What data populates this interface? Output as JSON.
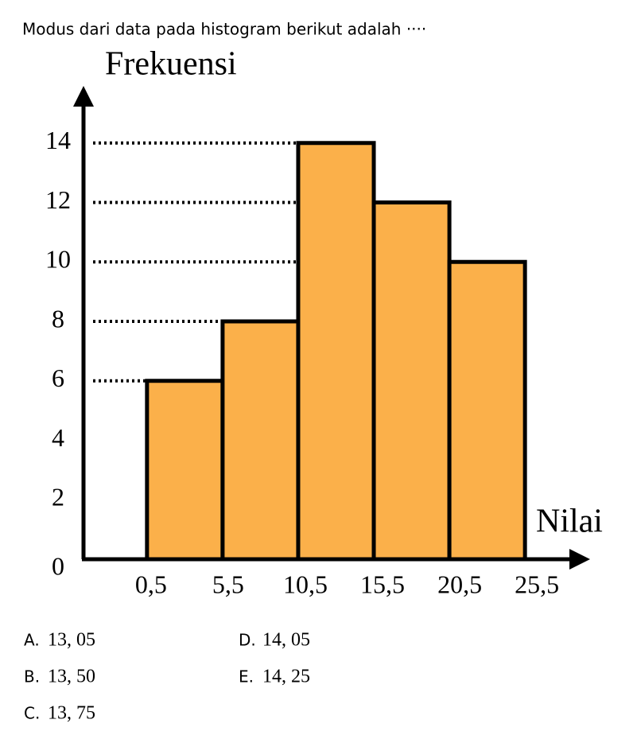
{
  "question": "Modus dari data pada histogram berikut adalah ····",
  "chart_data": {
    "type": "histogram",
    "y_label": "Frekuensi",
    "x_label": "Nilai",
    "bins": [
      0.5,
      5.5,
      10.5,
      15.5,
      20.5,
      25.5
    ],
    "values": [
      6,
      8,
      14,
      12,
      10
    ],
    "color": "#fbb04a",
    "xlim": [
      -3.7,
      29.7
    ],
    "ylim": [
      0,
      16
    ],
    "xticks": [
      {
        "value": 0.5,
        "label": "0,5"
      },
      {
        "value": 5.5,
        "label": "5,5"
      },
      {
        "value": 10.5,
        "label": "10,5"
      },
      {
        "value": 15.5,
        "label": "15,5"
      },
      {
        "value": 20.5,
        "label": "20,5"
      },
      {
        "value": 25.5,
        "label": "25,5"
      }
    ],
    "yticks": [
      0,
      2,
      4,
      6,
      8,
      10,
      12,
      14
    ],
    "guide_lines": true
  },
  "options": [
    {
      "letter": "A.",
      "text": "13, 05"
    },
    {
      "letter": "B.",
      "text": "13, 50"
    },
    {
      "letter": "C.",
      "text": "13, 75"
    },
    {
      "letter": "D.",
      "text": "14, 05"
    },
    {
      "letter": "E.",
      "text": "14, 25"
    }
  ]
}
